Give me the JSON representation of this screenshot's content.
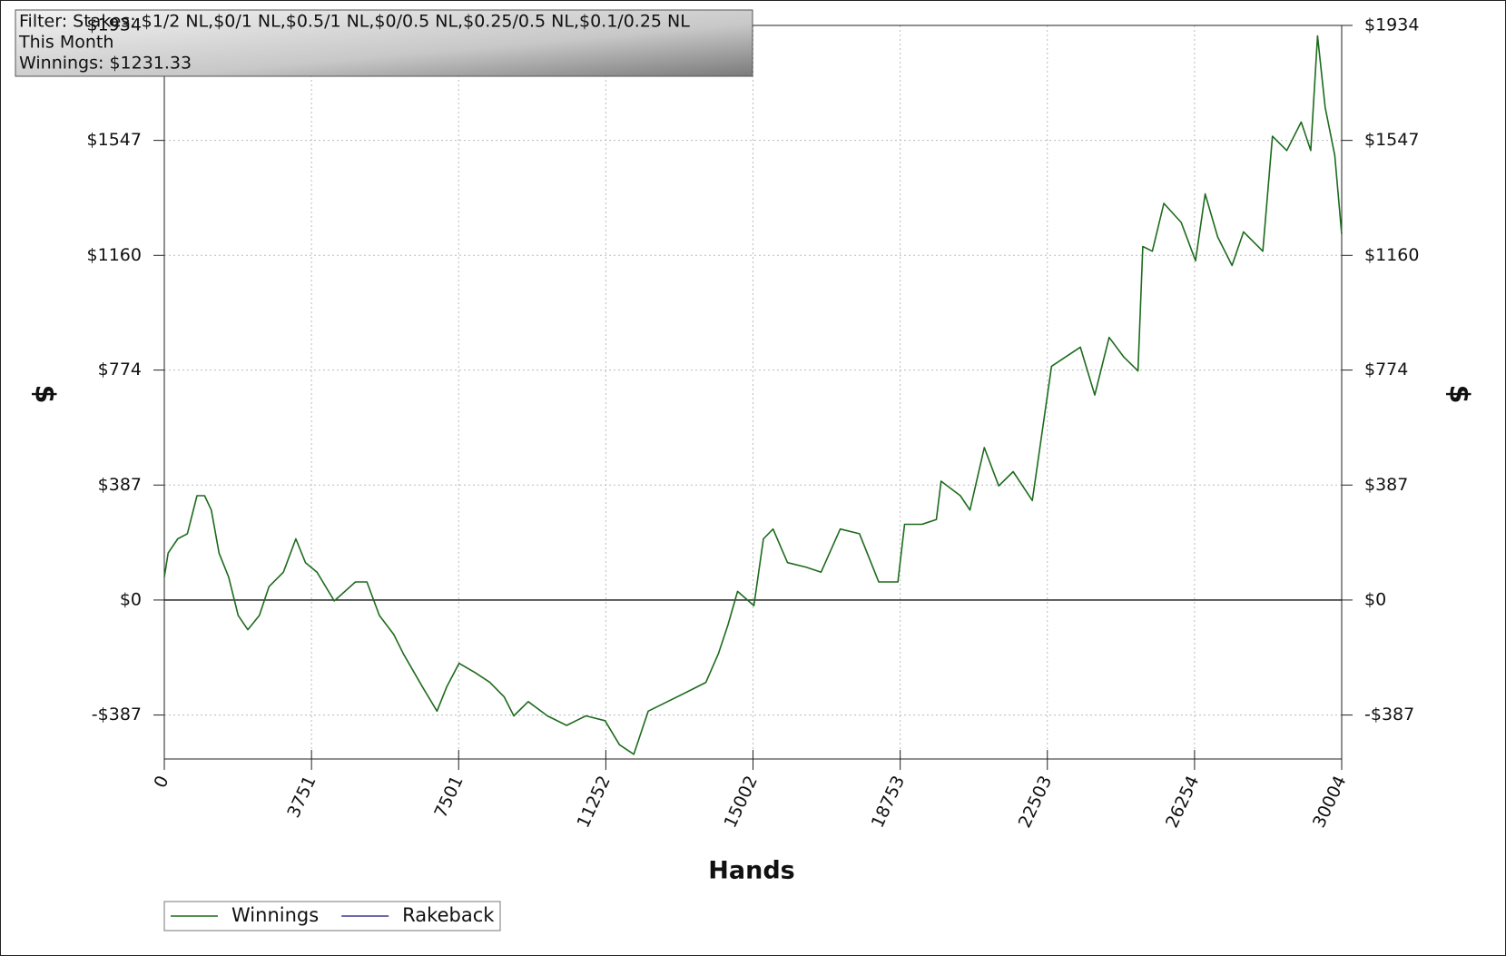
{
  "chart_data": {
    "type": "line",
    "filter": "Filter: Stakes: $1/2 NL,$0/1 NL,$0.5/1 NL,$0/0.5 NL,$0.25/0.5 NL,$0.1/0.25 NL",
    "period": "This Month",
    "summary": "Winnings: $1231.33",
    "xlabel": "Hands",
    "ylabel": "$",
    "xlim": [
      0,
      30004
    ],
    "xticks": [
      0,
      3751,
      7501,
      11252,
      15002,
      18753,
      22503,
      26254,
      30004
    ],
    "ylim": [
      -535,
      1934
    ],
    "yticks": [
      {
        "value": -387,
        "label": "-$387"
      },
      {
        "value": 0,
        "label": "$0"
      },
      {
        "value": 387,
        "label": "$387"
      },
      {
        "value": 774,
        "label": "$774"
      },
      {
        "value": 1160,
        "label": "$1160"
      },
      {
        "value": 1547,
        "label": "$1547"
      },
      {
        "value": 1934,
        "label": "$1934"
      }
    ],
    "grid": true,
    "legend": "bottom-left",
    "x": [
      0,
      98,
      343,
      587,
      832,
      1028,
      1199,
      1395,
      1640,
      1884,
      2129,
      2423,
      2667,
      3034,
      3352,
      3597,
      3891,
      4331,
      4870,
      5163,
      5481,
      5848,
      6093,
      6582,
      6949,
      7194,
      7512,
      7928,
      8295,
      8662,
      8907,
      9274,
      9763,
      10253,
      10742,
      11231,
      11598,
      11965,
      12332,
      12822,
      13311,
      13801,
      14119,
      14363,
      14608,
      15024,
      15269,
      15514,
      15881,
      16370,
      16737,
      17226,
      17716,
      17960,
      18205,
      18695,
      18866,
      19307,
      19674,
      19796,
      20285,
      20530,
      20897,
      21264,
      21631,
      22120,
      22365,
      22610,
      22977,
      23344,
      23711,
      24078,
      24445,
      24812,
      24935,
      25179,
      25473,
      25913,
      26280,
      26525,
      26843,
      27210,
      27503,
      27993,
      28238,
      28605,
      28972,
      29216,
      29388,
      29583,
      29828,
      30004
    ],
    "series": [
      {
        "name": "Winnings",
        "color": "#1d6b1d",
        "values": [
          77,
          158,
          206,
          223,
          351,
          351,
          303,
          158,
          77,
          -52,
          -100,
          -52,
          45,
          94,
          206,
          126,
          94,
          -3,
          61,
          61,
          -52,
          -116,
          -181,
          -293,
          -374,
          -293,
          -213,
          -245,
          -277,
          -326,
          -390,
          -342,
          -390,
          -422,
          -390,
          -406,
          -487,
          -519,
          -374,
          -342,
          -310,
          -277,
          -181,
          -84,
          29,
          -19,
          206,
          239,
          126,
          110,
          94,
          239,
          223,
          142,
          61,
          61,
          255,
          255,
          271,
          400,
          351,
          303,
          513,
          384,
          432,
          335,
          561,
          787,
          819,
          851,
          690,
          884,
          819,
          771,
          1190,
          1174,
          1335,
          1271,
          1142,
          1367,
          1222,
          1126,
          1239,
          1174,
          1561,
          1513,
          1609,
          1513,
          1899,
          1658,
          1496,
          1231.33
        ]
      },
      {
        "name": "Rakeback",
        "color": "#3a3a8f",
        "values": [
          null,
          null,
          null,
          null,
          null,
          null,
          null,
          null,
          null,
          null,
          null,
          null,
          null,
          null,
          null,
          null,
          null,
          null,
          null,
          null,
          null,
          null,
          null,
          null,
          null,
          null,
          null,
          null,
          null,
          null,
          null,
          null,
          null,
          null,
          null,
          null,
          null,
          null,
          null,
          null,
          null,
          null,
          null,
          null,
          null,
          null,
          null,
          null,
          null,
          null,
          null,
          null,
          null,
          null,
          null,
          null,
          null,
          null,
          null,
          null,
          null,
          null,
          null,
          null,
          null,
          null,
          null,
          null,
          null,
          null,
          null,
          null,
          null,
          null,
          null,
          null,
          null,
          null,
          null,
          null,
          null,
          null,
          null,
          null,
          null,
          null,
          null,
          null,
          null,
          null,
          null,
          null
        ]
      }
    ]
  }
}
